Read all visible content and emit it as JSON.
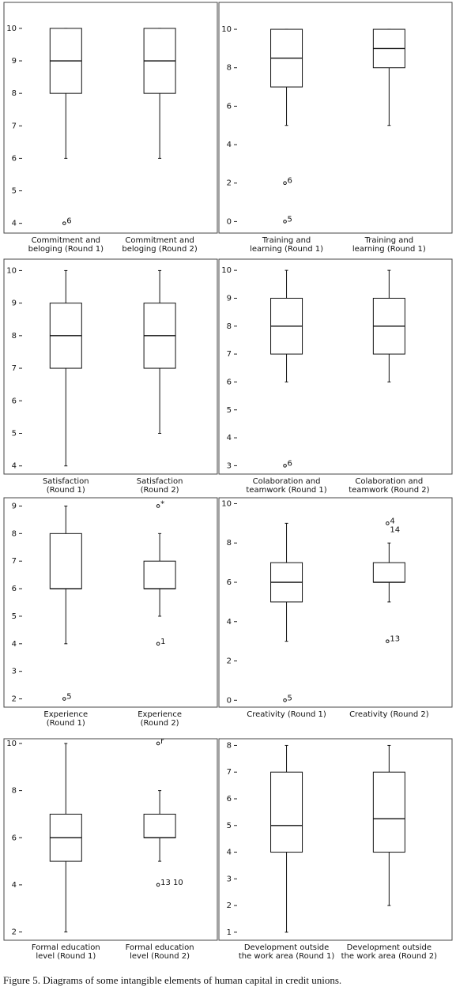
{
  "chart_data": [
    {
      "type": "box",
      "categories": [
        [
          "Commitment and",
          "beloging (Round 1)"
        ],
        [
          "Commitment and",
          "beloging (Round 2)"
        ]
      ],
      "boxes": [
        {
          "min": 6,
          "q1": 8,
          "median": 9,
          "q3": 10,
          "max": 10,
          "outliers": [
            {
              "value": 4,
              "label": "6"
            }
          ]
        },
        {
          "min": 6,
          "q1": 8,
          "median": 9,
          "q3": 10,
          "max": 10,
          "outliers": []
        }
      ],
      "ylim": [
        3.7,
        10.8
      ],
      "yticks": [
        4,
        5,
        6,
        7,
        8,
        9,
        10
      ]
    },
    {
      "type": "box",
      "categories": [
        [
          "Training and",
          "learning (Round 1)"
        ],
        [
          "Training and",
          "learning (Round 1)"
        ]
      ],
      "boxes": [
        {
          "min": 5,
          "q1": 7,
          "median": 8.5,
          "q3": 10,
          "max": 10,
          "outliers": [
            {
              "value": 2,
              "label": "6"
            },
            {
              "value": 0,
              "label": "5"
            }
          ]
        },
        {
          "min": 5,
          "q1": 8,
          "median": 9,
          "q3": 10,
          "max": 10,
          "outliers": []
        }
      ],
      "ylim": [
        -0.6,
        11.4
      ],
      "yticks": [
        0,
        2,
        4,
        6,
        8,
        10
      ]
    },
    {
      "type": "box",
      "categories": [
        [
          "Satisfaction",
          "(Round 1)"
        ],
        [
          "Satisfaction",
          "(Round 2)"
        ]
      ],
      "boxes": [
        {
          "min": 4,
          "q1": 7,
          "median": 8,
          "q3": 9,
          "max": 10,
          "outliers": []
        },
        {
          "min": 5,
          "q1": 7,
          "median": 8,
          "q3": 9,
          "max": 10,
          "outliers": []
        }
      ],
      "ylim": [
        3.75,
        10.35
      ],
      "yticks": [
        4,
        5,
        6,
        7,
        8,
        9,
        10
      ]
    },
    {
      "type": "box",
      "categories": [
        [
          "Colaboration and",
          "teamwork (Round 1)"
        ],
        [
          "Colaboration and",
          "teamwork (Round 2)"
        ]
      ],
      "boxes": [
        {
          "min": 6,
          "q1": 7,
          "median": 8,
          "q3": 9,
          "max": 10,
          "outliers": [
            {
              "value": 3,
              "label": "6"
            }
          ]
        },
        {
          "min": 6,
          "q1": 7,
          "median": 8,
          "q3": 9,
          "max": 10,
          "outliers": []
        }
      ],
      "ylim": [
        2.7,
        10.4
      ],
      "yticks": [
        3,
        4,
        5,
        6,
        7,
        8,
        9,
        10
      ]
    },
    {
      "type": "box",
      "categories": [
        [
          "Experience",
          "(Round 1)"
        ],
        [
          "Experience",
          "(Round 2)"
        ]
      ],
      "boxes": [
        {
          "min": 4,
          "q1": 6,
          "median": 6,
          "q3": 8,
          "max": 9,
          "outliers": [
            {
              "value": 2,
              "label": "5"
            }
          ]
        },
        {
          "min": 5,
          "q1": 6,
          "median": 6,
          "q3": 7,
          "max": 8,
          "outliers": [
            {
              "value": 9,
              "label": "*"
            },
            {
              "value": 4,
              "label": "1"
            }
          ]
        }
      ],
      "ylim": [
        1.7,
        9.3
      ],
      "yticks": [
        2,
        3,
        4,
        5,
        6,
        7,
        8,
        9
      ]
    },
    {
      "type": "box",
      "categories": [
        [
          "Creativity (Round 1)"
        ],
        [
          "Creativity (Round 2)"
        ]
      ],
      "boxes": [
        {
          "min": 3,
          "q1": 5,
          "median": 6,
          "q3": 7,
          "max": 9,
          "outliers": [
            {
              "value": 0,
              "label": "5"
            }
          ]
        },
        {
          "min": 5,
          "q1": 6,
          "median": 6,
          "q3": 7,
          "max": 8,
          "outliers": [
            {
              "value": 9,
              "label": "4"
            },
            {
              "value": 3,
              "label": "13"
            }
          ]
        }
      ],
      "annotations": [
        "14"
      ],
      "ylim": [
        -0.35,
        10.3
      ],
      "yticks": [
        0,
        2,
        4,
        6,
        8,
        10
      ]
    },
    {
      "type": "box",
      "categories": [
        [
          "Formal education",
          "level (Round 1)"
        ],
        [
          "Formal education",
          "level (Round 2)"
        ]
      ],
      "boxes": [
        {
          "min": 2,
          "q1": 5,
          "median": 6,
          "q3": 7,
          "max": 10,
          "outliers": []
        },
        {
          "min": 5,
          "q1": 6,
          "median": 6,
          "q3": 7,
          "max": 8,
          "outliers": [
            {
              "value": 10,
              "label": "r"
            },
            {
              "value": 4,
              "label": "13 10"
            }
          ]
        }
      ],
      "ylim": [
        1.65,
        10.2
      ],
      "yticks": [
        2,
        4,
        6,
        8,
        10
      ]
    },
    {
      "type": "box",
      "categories": [
        [
          "Development outside",
          "the work area (Round 1)"
        ],
        [
          "Development outside",
          "the work area (Round 2)"
        ]
      ],
      "boxes": [
        {
          "min": 1,
          "q1": 4,
          "median": 5,
          "q3": 7,
          "max": 8,
          "outliers": []
        },
        {
          "min": 2,
          "q1": 4,
          "median": 5.25,
          "q3": 7,
          "max": 8,
          "outliers": []
        }
      ],
      "ylim": [
        0.7,
        8.25
      ],
      "yticks": [
        1,
        2,
        3,
        4,
        5,
        6,
        7,
        8
      ]
    }
  ],
  "caption": "Figure 5. Diagrams of some intangible elements of human capital in credit unions."
}
